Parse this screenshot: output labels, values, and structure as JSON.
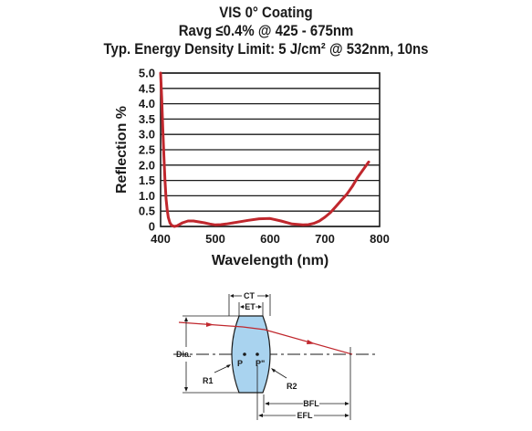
{
  "titles": {
    "line1": "VIS 0° Coating",
    "line2": "Ravg ≤0.4% @ 425 - 675nm",
    "line3": "Typ. Energy Density Limit: 5 J/cm² @ 532nm, 10ns"
  },
  "chart_data": {
    "type": "line",
    "title": "VIS 0° Coating",
    "subtitle": [
      "Ravg ≤0.4% @ 425 - 675nm",
      "Typ. Energy Density Limit: 5 J/cm² @ 532nm, 10ns"
    ],
    "xlabel": "Wavelength (nm)",
    "ylabel": "Reflection %",
    "xlim": [
      400,
      800
    ],
    "ylim": [
      0,
      5.0
    ],
    "x_ticks": [
      "400",
      "500",
      "600",
      "700",
      "800"
    ],
    "y_ticks": [
      "0",
      "0.5",
      "1.0",
      "1.5",
      "2.0",
      "2.5",
      "3.0",
      "3.5",
      "4.0",
      "4.5",
      "5.0"
    ],
    "grid": "horizontal",
    "line_color": "#c0272d",
    "series": [
      {
        "x": [
          400,
          402,
          404,
          406,
          408,
          410,
          412,
          414,
          417,
          420,
          425,
          430,
          440,
          450,
          460,
          470,
          480,
          490,
          500,
          510,
          520,
          540,
          560,
          580,
          600,
          620,
          640,
          660,
          670,
          680,
          690,
          700,
          710,
          720,
          730,
          740,
          750,
          760,
          770,
          780
        ],
        "y": [
          5.0,
          4.2,
          3.2,
          2.3,
          1.5,
          0.9,
          0.55,
          0.3,
          0.12,
          0.04,
          0.0,
          0.02,
          0.12,
          0.18,
          0.18,
          0.15,
          0.12,
          0.08,
          0.05,
          0.06,
          0.08,
          0.14,
          0.2,
          0.25,
          0.26,
          0.18,
          0.08,
          0.05,
          0.06,
          0.1,
          0.18,
          0.3,
          0.45,
          0.65,
          0.85,
          1.05,
          1.3,
          1.6,
          1.85,
          2.1
        ]
      }
    ]
  },
  "diagram": {
    "ct_label": "CT",
    "et_label": "ET",
    "dia_label": "Dia.",
    "r1_label": "R1",
    "r2_label": "R2",
    "p_label": "P",
    "pprime_label": "P\"",
    "bfl_label": "BFL",
    "efl_label": "EFL"
  }
}
